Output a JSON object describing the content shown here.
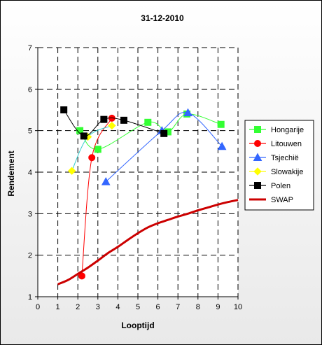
{
  "chart_data": {
    "type": "line",
    "title": "31-12-2010",
    "xlabel": "Looptijd",
    "ylabel": "Rendement",
    "xlim": [
      0,
      10
    ],
    "ylim": [
      1,
      7
    ],
    "xticks": [
      0,
      1,
      2,
      3,
      4,
      5,
      6,
      7,
      8,
      9,
      10
    ],
    "yticks": [
      1,
      2,
      3,
      4,
      5,
      6,
      7
    ],
    "grid": "dashed",
    "legend_position": "right",
    "series": [
      {
        "name": "Hongarije",
        "color": "#33ff33",
        "marker": "square",
        "line": "thin",
        "points": [
          [
            2.1,
            5.0
          ],
          [
            3.0,
            4.55
          ],
          [
            5.5,
            5.2
          ],
          [
            6.5,
            4.97
          ],
          [
            7.45,
            5.4
          ],
          [
            9.15,
            5.15
          ]
        ]
      },
      {
        "name": "Litouwen",
        "color": "#ff0000",
        "marker": "circle",
        "line": "thin",
        "points": [
          [
            2.2,
            1.5
          ],
          [
            2.7,
            4.35
          ],
          [
            3.7,
            5.3
          ]
        ]
      },
      {
        "name": "Tsjechië",
        "color": "#3366ff",
        "marker": "triangle",
        "line": "thin",
        "points": [
          [
            3.4,
            3.77
          ],
          [
            6.2,
            5.0
          ],
          [
            7.5,
            5.43
          ],
          [
            9.2,
            4.62
          ]
        ]
      },
      {
        "name": "Slowakije",
        "color": "#ffff00",
        "marker": "diamond",
        "line": "thin",
        "points": [
          [
            1.7,
            4.03
          ],
          [
            2.5,
            4.85
          ],
          [
            3.7,
            5.12
          ]
        ]
      },
      {
        "name": "Polen",
        "color": "#000000",
        "marker": "square",
        "line": "thin",
        "points": [
          [
            1.3,
            5.5
          ],
          [
            2.3,
            4.87
          ],
          [
            3.3,
            5.27
          ],
          [
            4.3,
            5.25
          ],
          [
            6.3,
            4.93
          ]
        ]
      },
      {
        "name": "SWAP",
        "color": "#cc0000",
        "marker": "none",
        "line": "thick",
        "points": [
          [
            1.0,
            1.3
          ],
          [
            1.5,
            1.4
          ],
          [
            2.0,
            1.55
          ],
          [
            2.5,
            1.7
          ],
          [
            3.0,
            1.87
          ],
          [
            3.5,
            2.05
          ],
          [
            4.0,
            2.2
          ],
          [
            4.5,
            2.37
          ],
          [
            5.0,
            2.53
          ],
          [
            5.5,
            2.67
          ],
          [
            6.0,
            2.77
          ],
          [
            6.5,
            2.85
          ],
          [
            7.0,
            2.93
          ],
          [
            7.5,
            3.0
          ],
          [
            8.0,
            3.08
          ],
          [
            8.5,
            3.15
          ],
          [
            9.0,
            3.22
          ],
          [
            9.5,
            3.28
          ],
          [
            10.0,
            3.33
          ]
        ]
      }
    ]
  }
}
